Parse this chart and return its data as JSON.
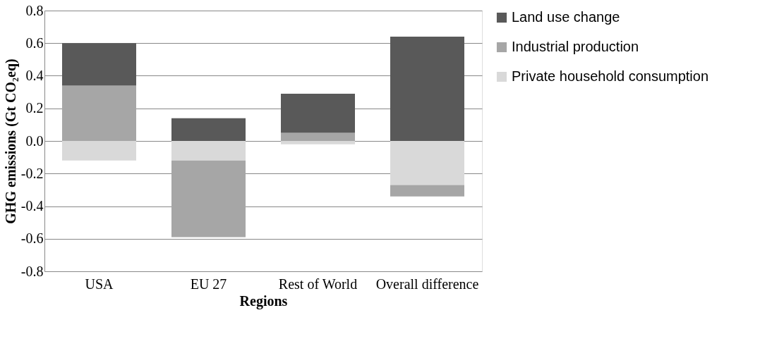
{
  "chart_data": {
    "type": "bar",
    "stacked": true,
    "xlabel": "Regions",
    "ylabel": "GHG emissions (Gt CO₂eq)",
    "categories": [
      "USA",
      "EU 27",
      "Rest of World",
      "Overall difference"
    ],
    "series": [
      {
        "name": "Private household consumption",
        "color": "#d9d9d9",
        "values": [
          -0.12,
          -0.12,
          -0.02,
          -0.27
        ]
      },
      {
        "name": "Industrial production",
        "color": "#a6a6a6",
        "values": [
          0.34,
          -0.47,
          0.05,
          -0.07
        ]
      },
      {
        "name": "Land use change",
        "color": "#595959",
        "values": [
          0.26,
          0.14,
          0.24,
          0.64
        ]
      }
    ],
    "ylim": [
      -0.8,
      0.8
    ],
    "yticks": [
      {
        "value": -0.8,
        "label": "-0.8"
      },
      {
        "value": -0.6,
        "label": "-0.6"
      },
      {
        "value": -0.4,
        "label": "-0.4"
      },
      {
        "value": -0.2,
        "label": "-0.2"
      },
      {
        "value": 0,
        "label": "0.0"
      },
      {
        "value": 0.2,
        "label": "0.2"
      },
      {
        "value": 0.4,
        "label": "0.4"
      },
      {
        "value": 0.6,
        "label": "0.6"
      },
      {
        "value": 0.8,
        "label": "0.8"
      }
    ],
    "grid": "y",
    "legend": "right"
  }
}
